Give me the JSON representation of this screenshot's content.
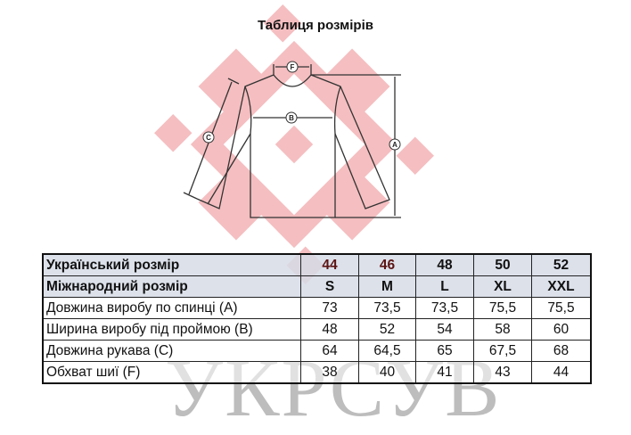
{
  "title": "Таблиця розмірів",
  "watermark": "УКРСУВ",
  "diagram_labels": {
    "a": "A",
    "b": "B",
    "c": "C",
    "f": "F"
  },
  "colors": {
    "ornament": "#f2a9ac",
    "header_bg": "#d6dce6",
    "header_red": "#5c1414"
  },
  "table": {
    "rows": [
      {
        "label": "Український розмір",
        "values": [
          "44",
          "46",
          "48",
          "50",
          "52"
        ]
      },
      {
        "label": "Міжнародний розмір",
        "values": [
          "S",
          "M",
          "L",
          "XL",
          "XXL"
        ]
      },
      {
        "label": "Довжина виробу по спинці (A)",
        "values": [
          "73",
          "73,5",
          "73,5",
          "75,5",
          "75,5"
        ]
      },
      {
        "label": "Ширина виробу під проймою (B)",
        "values": [
          "48",
          "52",
          "54",
          "58",
          "60"
        ]
      },
      {
        "label": "Довжина рукава (C)",
        "values": [
          "64",
          "64,5",
          "65",
          "67,5",
          "68"
        ]
      },
      {
        "label": "Обхват шиї (F)",
        "values": [
          "38",
          "40",
          "41",
          "43",
          "44"
        ]
      }
    ]
  }
}
